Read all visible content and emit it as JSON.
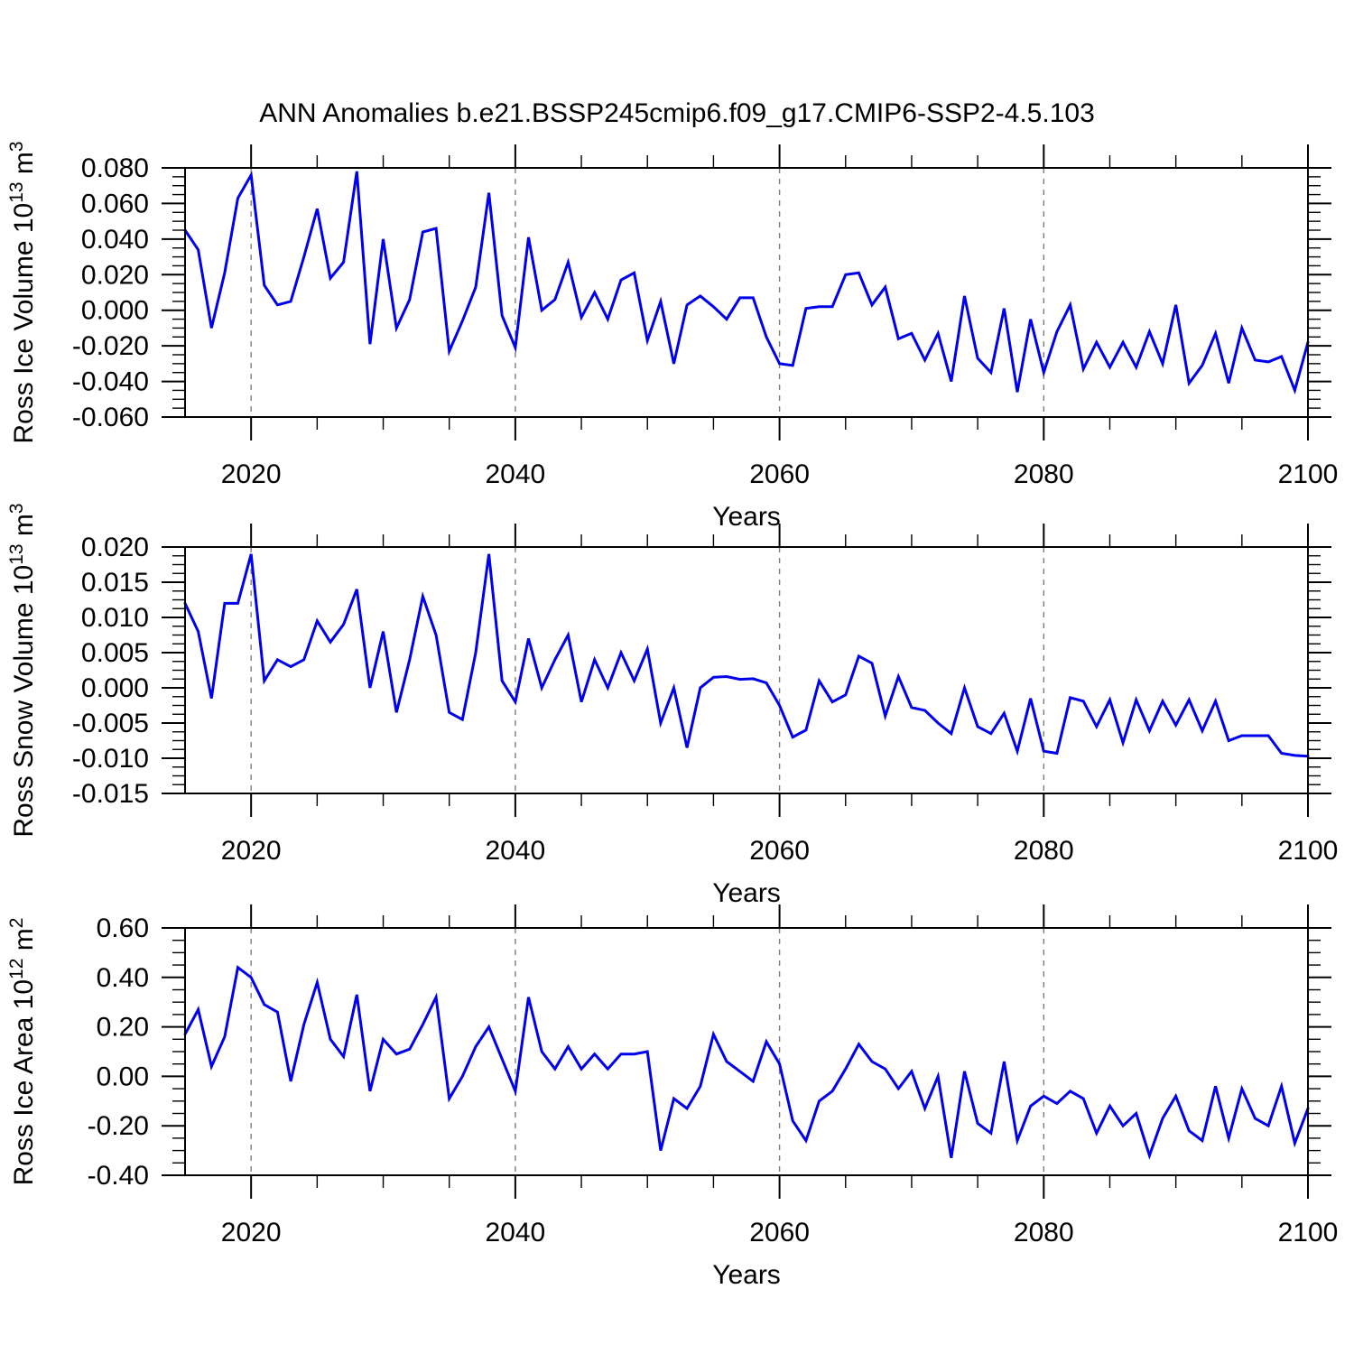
{
  "title": "ANN Anomalies b.e21.BSSP245cmip6.f09_g17.CMIP6-SSP2-4.5.103",
  "xlabel": "Years",
  "line_color": "#0000ee",
  "grid_color": "#7f7f7f",
  "axis_color": "#000000",
  "x_start": 2015,
  "x_end": 2100,
  "x_step": 1,
  "x_major_ticks": [
    2020,
    2040,
    2060,
    2080,
    2100
  ],
  "x_tick_labels": [
    "2020",
    "2040",
    "2060",
    "2080",
    "2100"
  ],
  "x_minor_step": 5,
  "grid_years": [
    2020,
    2040,
    2060,
    2080
  ],
  "years": [
    2015,
    2016,
    2017,
    2018,
    2019,
    2020,
    2021,
    2022,
    2023,
    2024,
    2025,
    2026,
    2027,
    2028,
    2029,
    2030,
    2031,
    2032,
    2033,
    2034,
    2035,
    2036,
    2037,
    2038,
    2039,
    2040,
    2041,
    2042,
    2043,
    2044,
    2045,
    2046,
    2047,
    2048,
    2049,
    2050,
    2051,
    2052,
    2053,
    2054,
    2055,
    2056,
    2057,
    2058,
    2059,
    2060,
    2061,
    2062,
    2063,
    2064,
    2065,
    2066,
    2067,
    2068,
    2069,
    2070,
    2071,
    2072,
    2073,
    2074,
    2075,
    2076,
    2077,
    2078,
    2079,
    2080,
    2081,
    2082,
    2083,
    2084,
    2085,
    2086,
    2087,
    2088,
    2089,
    2090,
    2091,
    2092,
    2093,
    2094,
    2095,
    2096,
    2097,
    2098,
    2099,
    2100
  ],
  "chart_data": [
    {
      "type": "line",
      "name": "ross-ice-volume",
      "ylabel_segments": [
        {
          "t": "Ross Ice Volume 10"
        },
        {
          "sup": "13"
        },
        {
          "t": " m"
        },
        {
          "sup": "3"
        }
      ],
      "ylim": [
        -0.06,
        0.08
      ],
      "ytick_values": [
        0.08,
        0.06,
        0.04,
        0.02,
        0.0,
        -0.02,
        -0.04,
        -0.06
      ],
      "ytick_labels": [
        "0.080",
        "0.060",
        "0.040",
        "0.020",
        "0.000",
        "-0.020",
        "-0.040",
        "-0.060"
      ],
      "y_minor_step": 0.005,
      "values": [
        0.045,
        0.034,
        -0.01,
        0.021,
        0.063,
        0.076,
        0.014,
        0.003,
        0.005,
        0.03,
        0.057,
        0.018,
        0.027,
        0.078,
        -0.019,
        0.04,
        -0.01,
        0.006,
        0.044,
        0.046,
        -0.023,
        -0.006,
        0.013,
        0.066,
        -0.003,
        -0.021,
        0.041,
        0.0,
        0.006,
        0.027,
        -0.004,
        0.01,
        -0.005,
        0.017,
        0.021,
        -0.017,
        0.005,
        -0.03,
        0.003,
        0.008,
        0.002,
        -0.005,
        0.007,
        0.007,
        -0.015,
        -0.03,
        -0.031,
        0.001,
        0.002,
        0.002,
        0.02,
        0.021,
        0.003,
        0.013,
        -0.016,
        -0.013,
        -0.028,
        -0.013,
        -0.04,
        0.008,
        -0.027,
        -0.035,
        0.001,
        -0.046,
        -0.005,
        -0.035,
        -0.012,
        0.003,
        -0.033,
        -0.018,
        -0.032,
        -0.018,
        -0.032,
        -0.012,
        -0.03,
        0.003,
        -0.041,
        -0.031,
        -0.013,
        -0.041,
        -0.01,
        -0.028,
        -0.029,
        -0.026,
        -0.045,
        -0.018
      ]
    },
    {
      "type": "line",
      "name": "ross-snow-volume",
      "ylabel_segments": [
        {
          "t": "Ross Snow Volume 10"
        },
        {
          "sup": "13"
        },
        {
          "t": " m"
        },
        {
          "sup": "3"
        }
      ],
      "ylim": [
        -0.015,
        0.02
      ],
      "ytick_values": [
        0.02,
        0.015,
        0.01,
        0.005,
        0.0,
        -0.005,
        -0.01,
        -0.015
      ],
      "ytick_labels": [
        "0.020",
        "0.015",
        "0.010",
        "0.005",
        "0.000",
        "-0.005",
        "-0.010",
        "-0.015"
      ],
      "y_minor_step": 0.00125,
      "values": [
        0.012,
        0.008,
        -0.0015,
        0.012,
        0.012,
        0.019,
        0.001,
        0.004,
        0.003,
        0.004,
        0.0095,
        0.0065,
        0.009,
        0.014,
        0.0,
        0.008,
        -0.0035,
        0.004,
        0.013,
        0.0075,
        -0.0035,
        -0.0045,
        0.005,
        0.019,
        0.001,
        -0.002,
        0.007,
        0.0,
        0.004,
        0.0075,
        -0.002,
        0.004,
        0.0,
        0.005,
        0.001,
        0.0055,
        -0.005,
        0.0,
        -0.0085,
        0.0,
        0.0015,
        0.0016,
        0.0012,
        0.0013,
        0.0007,
        -0.0025,
        -0.007,
        -0.006,
        0.001,
        -0.002,
        -0.001,
        0.0045,
        0.0035,
        -0.004,
        0.0016,
        -0.0028,
        -0.0032,
        -0.005,
        -0.0065,
        0.0,
        -0.0055,
        -0.0065,
        -0.0036,
        -0.009,
        -0.0015,
        -0.009,
        -0.0093,
        -0.0014,
        -0.0019,
        -0.0055,
        -0.0017,
        -0.0078,
        -0.0017,
        -0.0061,
        -0.0019,
        -0.0053,
        -0.0017,
        -0.0061,
        -0.0019,
        -0.0075,
        -0.0068,
        -0.0068,
        -0.0068,
        -0.0093,
        -0.0096,
        -0.0097
      ]
    },
    {
      "type": "line",
      "name": "ross-ice-area",
      "ylabel_segments": [
        {
          "t": "Ross Ice Area 10"
        },
        {
          "sup": "12"
        },
        {
          "t": " m"
        },
        {
          "sup": "2"
        }
      ],
      "ylim": [
        -0.4,
        0.6
      ],
      "ytick_values": [
        0.6,
        0.4,
        0.2,
        0.0,
        -0.2,
        -0.4
      ],
      "ytick_labels": [
        "0.60",
        "0.40",
        "0.20",
        "0.00",
        "-0.20",
        "-0.40"
      ],
      "y_minor_step": 0.05,
      "values": [
        0.17,
        0.27,
        0.04,
        0.16,
        0.44,
        0.4,
        0.29,
        0.26,
        -0.02,
        0.21,
        0.38,
        0.15,
        0.08,
        0.33,
        -0.06,
        0.15,
        0.09,
        0.11,
        0.21,
        0.32,
        -0.09,
        0.0,
        0.12,
        0.2,
        0.07,
        -0.06,
        0.32,
        0.1,
        0.03,
        0.12,
        0.03,
        0.09,
        0.03,
        0.09,
        0.09,
        0.1,
        -0.3,
        -0.09,
        -0.13,
        -0.04,
        0.17,
        0.06,
        0.02,
        -0.02,
        0.14,
        0.05,
        -0.18,
        -0.26,
        -0.1,
        -0.06,
        0.03,
        0.13,
        0.06,
        0.03,
        -0.05,
        0.02,
        -0.13,
        0.0,
        -0.33,
        0.02,
        -0.19,
        -0.23,
        0.06,
        -0.26,
        -0.12,
        -0.08,
        -0.11,
        -0.06,
        -0.09,
        -0.23,
        -0.12,
        -0.2,
        -0.15,
        -0.32,
        -0.17,
        -0.08,
        -0.22,
        -0.26,
        -0.04,
        -0.25,
        -0.05,
        -0.17,
        -0.2,
        -0.04,
        -0.27,
        -0.13
      ]
    }
  ]
}
